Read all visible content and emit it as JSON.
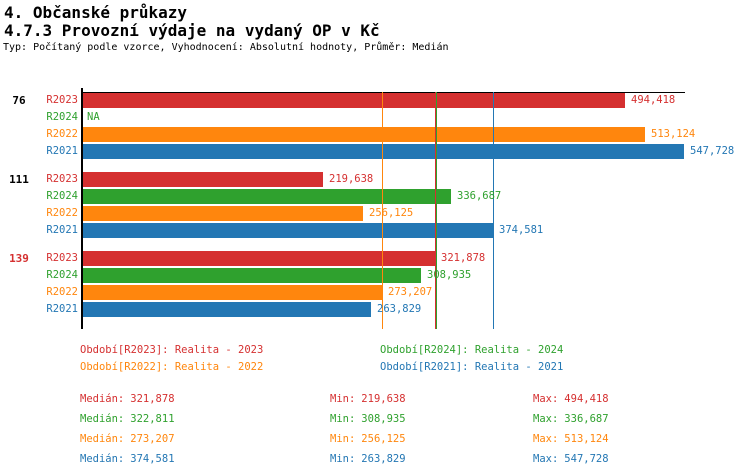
{
  "header": {
    "title1": "4. Občanské průkazy",
    "title2": "4.7.3 Provozní výdaje na vydaný OP v Kč",
    "subtitle": "Typ: Počítaný podle vzorce, Vyhodnocení: Absolutní hodnoty, Průměr: Medián"
  },
  "colors": {
    "R2023": "#d53030",
    "R2024": "#2fa12e",
    "R2022": "#ff860d",
    "R2021": "#2377b4",
    "axis": "#000000",
    "group_label_default": "#000000",
    "group_label_highlight": "#d53030"
  },
  "chart_data": {
    "type": "bar",
    "orientation": "horizontal",
    "unit": "Kč",
    "series_order": [
      "R2023",
      "R2024",
      "R2022",
      "R2021"
    ],
    "x_axis": {
      "min": 0,
      "max": 594545,
      "tick_labels": [],
      "grid": "median lines per series"
    },
    "groups": [
      {
        "label": "76",
        "label_color": "#000000",
        "rows": [
          {
            "series": "R2023",
            "value": 494418,
            "display": "494,418"
          },
          {
            "series": "R2024",
            "value": null,
            "display": "NA"
          },
          {
            "series": "R2022",
            "value": 513124,
            "display": "513,124"
          },
          {
            "series": "R2021",
            "value": 547728,
            "display": "547,728"
          }
        ]
      },
      {
        "label": "111",
        "label_color": "#000000",
        "rows": [
          {
            "series": "R2023",
            "value": 219638,
            "display": "219,638"
          },
          {
            "series": "R2024",
            "value": 336687,
            "display": "336,687"
          },
          {
            "series": "R2022",
            "value": 256125,
            "display": "256,125"
          },
          {
            "series": "R2021",
            "value": 374581,
            "display": "374,581"
          }
        ]
      },
      {
        "label": "139",
        "label_color": "#d53030",
        "rows": [
          {
            "series": "R2023",
            "value": 321878,
            "display": "321,878"
          },
          {
            "series": "R2024",
            "value": 308935,
            "display": "308,935"
          },
          {
            "series": "R2022",
            "value": 273207,
            "display": "273,207"
          },
          {
            "series": "R2021",
            "value": 263829,
            "display": "263,829"
          }
        ]
      }
    ],
    "median_lines": [
      {
        "series": "R2023",
        "value": 321878
      },
      {
        "series": "R2024",
        "value": 322811
      },
      {
        "series": "R2022",
        "value": 273207
      },
      {
        "series": "R2021",
        "value": 374581
      }
    ]
  },
  "legend": [
    {
      "series": "R2023",
      "text": "Období[R2023]: Realita - 2023"
    },
    {
      "series": "R2024",
      "text": "Období[R2024]: Realita - 2024"
    },
    {
      "series": "R2022",
      "text": "Období[R2022]: Realita - 2022"
    },
    {
      "series": "R2021",
      "text": "Období[R2021]: Realita - 2021"
    }
  ],
  "stats_labels": {
    "median": "Medián:",
    "min": "Min:",
    "max": "Max:"
  },
  "stats": [
    {
      "series": "R2023",
      "median": "321,878",
      "min": "219,638",
      "max": "494,418"
    },
    {
      "series": "R2024",
      "median": "322,811",
      "min": "308,935",
      "max": "336,687"
    },
    {
      "series": "R2022",
      "median": "273,207",
      "min": "256,125",
      "max": "513,124"
    },
    {
      "series": "R2021",
      "median": "374,581",
      "min": "263,829",
      "max": "547,728"
    }
  ]
}
